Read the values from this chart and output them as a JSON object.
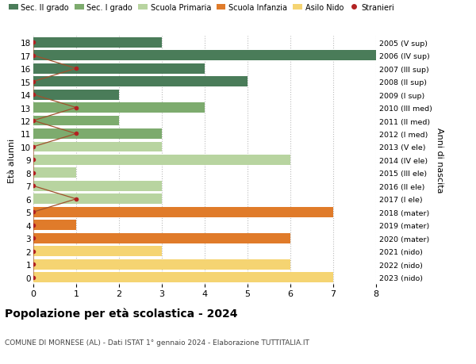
{
  "ages": [
    18,
    17,
    16,
    15,
    14,
    13,
    12,
    11,
    10,
    9,
    8,
    7,
    6,
    5,
    4,
    3,
    2,
    1,
    0
  ],
  "right_labels": [
    "2005 (V sup)",
    "2006 (IV sup)",
    "2007 (III sup)",
    "2008 (II sup)",
    "2009 (I sup)",
    "2010 (III med)",
    "2011 (II med)",
    "2012 (I med)",
    "2013 (V ele)",
    "2014 (IV ele)",
    "2015 (III ele)",
    "2016 (II ele)",
    "2017 (I ele)",
    "2018 (mater)",
    "2019 (mater)",
    "2020 (mater)",
    "2021 (nido)",
    "2022 (nido)",
    "2023 (nido)"
  ],
  "values": [
    3,
    8,
    4,
    5,
    2,
    4,
    2,
    3,
    3,
    6,
    1,
    3,
    3,
    7,
    1,
    6,
    3,
    6,
    7
  ],
  "stranieri": [
    0,
    0,
    1,
    0,
    0,
    1,
    0,
    1,
    0,
    0,
    0,
    0,
    1,
    0,
    0,
    0,
    0,
    0,
    0
  ],
  "bar_colors": [
    "#4a7c59",
    "#4a7c59",
    "#4a7c59",
    "#4a7c59",
    "#4a7c59",
    "#7dab6e",
    "#7dab6e",
    "#7dab6e",
    "#b8d4a0",
    "#b8d4a0",
    "#b8d4a0",
    "#b8d4a0",
    "#b8d4a0",
    "#e07b2a",
    "#e07b2a",
    "#e07b2a",
    "#f5d472",
    "#f5d472",
    "#f5d472"
  ],
  "color_sec2": "#4a7c59",
  "color_sec1": "#7dab6e",
  "color_prim": "#b8d4a0",
  "color_inf": "#e07b2a",
  "color_nido": "#f5d472",
  "color_stranieri": "#b22222",
  "color_line_stranieri": "#a0522d",
  "title": "Popolazione per età scolastica - 2024",
  "subtitle": "COMUNE DI MORNESE (AL) - Dati ISTAT 1° gennaio 2024 - Elaborazione TUTTITALIA.IT",
  "ylabel_left": "Età alunni",
  "ylabel_right": "Anni di nascita",
  "xlim": [
    0,
    8
  ],
  "ylim": [
    -0.5,
    18.5
  ],
  "background_color": "#ffffff",
  "legend_labels": [
    "Sec. II grado",
    "Sec. I grado",
    "Scuola Primaria",
    "Scuola Infanzia",
    "Asilo Nido",
    "Stranieri"
  ]
}
